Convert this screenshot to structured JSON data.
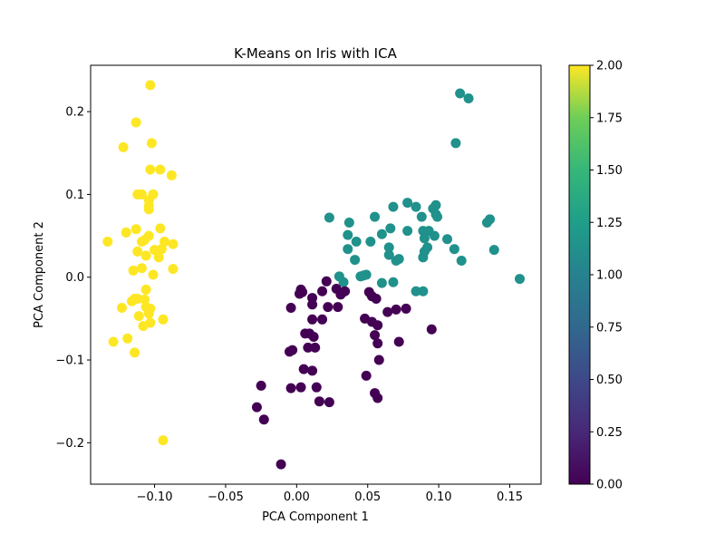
{
  "chart_data": {
    "type": "scatter",
    "title": "K-Means on Iris with ICA",
    "xlabel": "PCA Component 1",
    "ylabel": "PCA Component 2",
    "xlim": [
      -0.145,
      0.172
    ],
    "ylim": [
      -0.25,
      0.256
    ],
    "xticks": [
      -0.1,
      -0.05,
      0.0,
      0.05,
      0.1,
      0.15
    ],
    "xtick_labels": [
      "−0.10",
      "−0.05",
      "0.00",
      "0.05",
      "0.10",
      "0.15"
    ],
    "yticks": [
      -0.2,
      -0.1,
      0.0,
      0.1,
      0.2
    ],
    "ytick_labels": [
      "−0.2",
      "−0.1",
      "0.0",
      "0.1",
      "0.2"
    ],
    "grid": false,
    "colormap": "viridis",
    "colorbar": {
      "range": [
        0.0,
        2.0
      ],
      "ticks": [
        0.0,
        0.25,
        0.5,
        0.75,
        1.0,
        1.25,
        1.5,
        1.75,
        2.0
      ],
      "tick_labels": [
        "0.00",
        "0.25",
        "0.50",
        "0.75",
        "1.00",
        "1.25",
        "1.50",
        "1.75",
        "2.00"
      ]
    },
    "series": [
      {
        "cluster": 2,
        "color": "#fde725",
        "points": [
          [
            -0.103,
            0.232
          ],
          [
            -0.113,
            0.187
          ],
          [
            -0.122,
            0.157
          ],
          [
            -0.102,
            0.162
          ],
          [
            -0.103,
            0.13
          ],
          [
            -0.096,
            0.13
          ],
          [
            -0.088,
            0.123
          ],
          [
            -0.112,
            0.1
          ],
          [
            -0.109,
            0.1
          ],
          [
            -0.101,
            0.1
          ],
          [
            -0.104,
            0.093
          ],
          [
            -0.104,
            0.086
          ],
          [
            -0.104,
            0.082
          ],
          [
            -0.12,
            0.054
          ],
          [
            -0.113,
            0.058
          ],
          [
            -0.096,
            0.059
          ],
          [
            -0.104,
            0.05
          ],
          [
            -0.109,
            0.043
          ],
          [
            -0.107,
            0.045
          ],
          [
            -0.093,
            0.043
          ],
          [
            -0.087,
            0.04
          ],
          [
            -0.133,
            0.043
          ],
          [
            -0.1,
            0.033
          ],
          [
            -0.095,
            0.034
          ],
          [
            -0.112,
            0.031
          ],
          [
            -0.106,
            0.026
          ],
          [
            -0.097,
            0.024
          ],
          [
            -0.115,
            0.008
          ],
          [
            -0.109,
            0.011
          ],
          [
            -0.087,
            0.01
          ],
          [
            -0.101,
            0.003
          ],
          [
            -0.106,
            -0.015
          ],
          [
            -0.114,
            -0.026
          ],
          [
            -0.112,
            -0.026
          ],
          [
            -0.116,
            -0.029
          ],
          [
            -0.107,
            -0.027
          ],
          [
            -0.123,
            -0.037
          ],
          [
            -0.106,
            -0.036
          ],
          [
            -0.103,
            -0.038
          ],
          [
            -0.104,
            -0.044
          ],
          [
            -0.111,
            -0.047
          ],
          [
            -0.094,
            -0.051
          ],
          [
            -0.103,
            -0.055
          ],
          [
            -0.108,
            -0.059
          ],
          [
            -0.119,
            -0.074
          ],
          [
            -0.129,
            -0.078
          ],
          [
            -0.114,
            -0.091
          ],
          [
            -0.094,
            -0.197
          ]
        ]
      },
      {
        "cluster": 1,
        "color": "#21918c",
        "points": [
          [
            0.115,
            0.222
          ],
          [
            0.121,
            0.216
          ],
          [
            0.112,
            0.162
          ],
          [
            0.078,
            0.09
          ],
          [
            0.068,
            0.085
          ],
          [
            0.084,
            0.085
          ],
          [
            0.096,
            0.083
          ],
          [
            0.098,
            0.087
          ],
          [
            0.098,
            0.076
          ],
          [
            0.099,
            0.073
          ],
          [
            0.055,
            0.073
          ],
          [
            0.088,
            0.073
          ],
          [
            0.023,
            0.072
          ],
          [
            0.037,
            0.066
          ],
          [
            0.136,
            0.07
          ],
          [
            0.134,
            0.066
          ],
          [
            0.066,
            0.059
          ],
          [
            0.078,
            0.056
          ],
          [
            0.089,
            0.056
          ],
          [
            0.093,
            0.056
          ],
          [
            0.036,
            0.051
          ],
          [
            0.06,
            0.052
          ],
          [
            0.09,
            0.047
          ],
          [
            0.097,
            0.05
          ],
          [
            0.106,
            0.046
          ],
          [
            0.042,
            0.043
          ],
          [
            0.052,
            0.043
          ],
          [
            0.065,
            0.036
          ],
          [
            0.092,
            0.036
          ],
          [
            0.09,
            0.031
          ],
          [
            0.111,
            0.034
          ],
          [
            0.139,
            0.033
          ],
          [
            0.036,
            0.034
          ],
          [
            0.065,
            0.027
          ],
          [
            0.07,
            0.02
          ],
          [
            0.072,
            0.022
          ],
          [
            0.089,
            0.024
          ],
          [
            0.116,
            0.02
          ],
          [
            0.041,
            0.021
          ],
          [
            0.03,
            0.001
          ],
          [
            0.045,
            0.001
          ],
          [
            0.047,
            0.002
          ],
          [
            0.049,
            0.003
          ],
          [
            0.033,
            -0.006
          ],
          [
            0.06,
            -0.007
          ],
          [
            0.068,
            -0.006
          ],
          [
            0.084,
            -0.017
          ],
          [
            0.089,
            -0.017
          ],
          [
            0.157,
            -0.002
          ]
        ]
      },
      {
        "cluster": 0,
        "color": "#440154",
        "points": [
          [
            0.021,
            -0.005
          ],
          [
            0.003,
            -0.015
          ],
          [
            0.004,
            -0.018
          ],
          [
            0.002,
            -0.02
          ],
          [
            0.018,
            -0.017
          ],
          [
            0.028,
            -0.014
          ],
          [
            0.031,
            -0.021
          ],
          [
            0.034,
            -0.017
          ],
          [
            0.011,
            -0.025
          ],
          [
            0.051,
            -0.018
          ],
          [
            0.053,
            -0.023
          ],
          [
            0.056,
            -0.026
          ],
          [
            -0.004,
            -0.037
          ],
          [
            0.011,
            -0.033
          ],
          [
            0.022,
            -0.036
          ],
          [
            0.029,
            -0.036
          ],
          [
            0.07,
            -0.039
          ],
          [
            0.077,
            -0.038
          ],
          [
            0.064,
            -0.042
          ],
          [
            0.048,
            -0.05
          ],
          [
            0.011,
            -0.051
          ],
          [
            0.018,
            -0.051
          ],
          [
            0.053,
            -0.054
          ],
          [
            0.057,
            -0.058
          ],
          [
            0.006,
            -0.068
          ],
          [
            0.009,
            -0.068
          ],
          [
            0.012,
            -0.072
          ],
          [
            0.055,
            -0.07
          ],
          [
            0.095,
            -0.063
          ],
          [
            0.013,
            -0.085
          ],
          [
            0.008,
            -0.085
          ],
          [
            0.057,
            -0.08
          ],
          [
            0.072,
            -0.078
          ],
          [
            -0.005,
            -0.09
          ],
          [
            -0.003,
            -0.088
          ],
          [
            0.058,
            -0.1
          ],
          [
            0.005,
            -0.111
          ],
          [
            0.011,
            -0.113
          ],
          [
            0.049,
            -0.119
          ],
          [
            -0.004,
            -0.134
          ],
          [
            0.003,
            -0.133
          ],
          [
            0.014,
            -0.133
          ],
          [
            0.055,
            -0.14
          ],
          [
            0.057,
            -0.146
          ],
          [
            0.016,
            -0.15
          ],
          [
            0.023,
            -0.151
          ],
          [
            -0.025,
            -0.131
          ],
          [
            -0.028,
            -0.157
          ],
          [
            -0.023,
            -0.172
          ],
          [
            -0.011,
            -0.226
          ]
        ]
      }
    ]
  }
}
